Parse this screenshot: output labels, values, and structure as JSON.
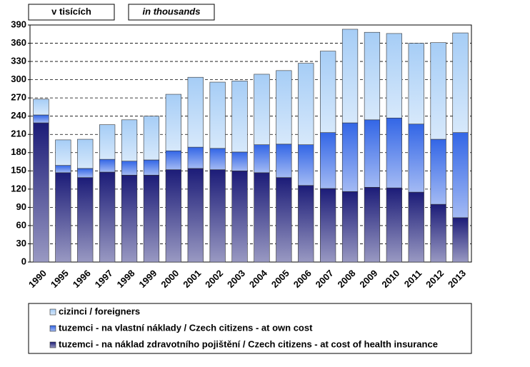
{
  "chart_data": {
    "type": "stacked-bar",
    "header_left": "v tisících",
    "header_right": "in thousands",
    "categories": [
      "1990",
      "1995",
      "1996",
      "1997",
      "1998",
      "1999",
      "2000",
      "2001",
      "2002",
      "2003",
      "2004",
      "2005",
      "2006",
      "2007",
      "2008",
      "2009",
      "2010",
      "2011",
      "2012",
      "2013"
    ],
    "series": [
      {
        "name": "tuzemci - na náklad zdravotního pojištění / Czech citizens - at cost of health insurance",
        "color": "#1c1c78",
        "values": [
          229,
          147,
          139,
          148,
          143,
          143,
          152,
          154,
          152,
          150,
          147,
          139,
          126,
          121,
          116,
          123,
          122,
          115,
          95,
          73
        ]
      },
      {
        "name": "tuzemci - na vlastní náklady / Czech citizens - at own cost",
        "color": "#3366e6",
        "values": [
          13,
          12,
          15,
          21,
          23,
          25,
          31,
          35,
          35,
          31,
          46,
          55,
          67,
          92,
          113,
          111,
          115,
          112,
          107,
          140
        ]
      },
      {
        "name": "cizinci / foreigners",
        "color": "#a6cdf6",
        "values": [
          26,
          42,
          48,
          57,
          68,
          72,
          93,
          115,
          109,
          117,
          116,
          121,
          134,
          134,
          154,
          144,
          139,
          133,
          159,
          164
        ]
      }
    ],
    "ylim": [
      0,
      390
    ],
    "yticks": [
      0,
      30,
      60,
      90,
      120,
      150,
      180,
      210,
      240,
      270,
      300,
      330,
      360,
      390
    ],
    "grid": true
  }
}
